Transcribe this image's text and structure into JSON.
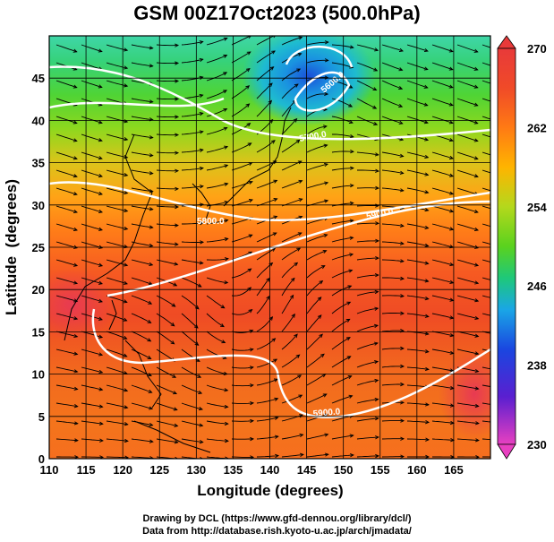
{
  "title": "GSM 00Z17Oct2023 (500.0hPa)",
  "chart_data": {
    "type": "heatmap",
    "title": "GSM 00Z17Oct2023 (500.0hPa)",
    "xlabel": "Longitude (degrees)",
    "ylabel": "Latitude  (degrees)",
    "xlim": [
      110,
      170
    ],
    "ylim": [
      0,
      50
    ],
    "x_ticks": [
      "110",
      "115",
      "120",
      "125",
      "130",
      "135",
      "140",
      "145",
      "150",
      "155",
      "160",
      "165"
    ],
    "y_ticks": [
      "0",
      "5",
      "10",
      "15",
      "20",
      "25",
      "30",
      "35",
      "40",
      "45"
    ],
    "grid": true,
    "colorbar": {
      "min": 230,
      "max": 270,
      "ticks": [
        "270",
        "262",
        "254",
        "246",
        "238",
        "230"
      ],
      "colors": [
        "#e840c0",
        "#5a1fd0",
        "#1a46e0",
        "#1aa6e6",
        "#1ec87a",
        "#5ad21e",
        "#b4d81c",
        "#ffb400",
        "#ff7a14",
        "#f04a28",
        "#e83a3a"
      ]
    },
    "contour_labels": [
      "5900.0",
      "5900.0",
      "5800.0",
      "5700.0",
      "5600.0"
    ]
  },
  "credits": {
    "line1": "Drawing by DCL (https://www.gfd-dennou.org/library/dcl/)",
    "line2": "Data from http://database.rish.kyoto-u.ac.jp/arch/jmadata/"
  }
}
